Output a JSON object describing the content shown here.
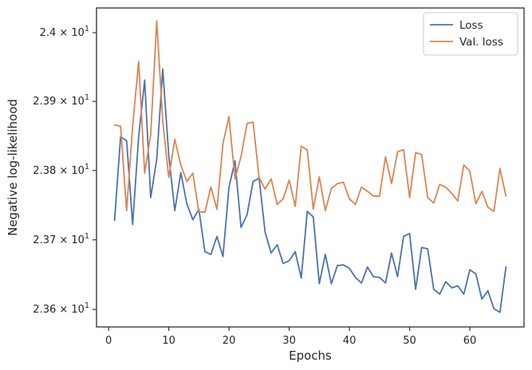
{
  "chart_data": {
    "type": "line",
    "xlabel": "Epochs",
    "ylabel": "Negative log-likelihood",
    "xlim": [
      -2,
      69
    ],
    "ylim": [
      23.575,
      24.036
    ],
    "y_scale": "log",
    "x_ticks": [
      0,
      10,
      20,
      30,
      40,
      50,
      60
    ],
    "x_tick_labels": [
      "0",
      "10",
      "20",
      "30",
      "40",
      "50",
      "60"
    ],
    "y_ticks": [
      23.6,
      23.7,
      23.8,
      23.9,
      24.0
    ],
    "y_tick_mantissas": [
      "2.36",
      "2.37",
      "2.38",
      "2.39",
      "2.4"
    ],
    "y_tick_base": "10",
    "y_tick_exponent": "1",
    "grid": false,
    "legend_position": "top-right",
    "x": [
      1,
      2,
      3,
      4,
      5,
      6,
      7,
      8,
      9,
      10,
      11,
      12,
      13,
      14,
      15,
      16,
      17,
      18,
      19,
      20,
      21,
      22,
      23,
      24,
      25,
      26,
      27,
      28,
      29,
      30,
      31,
      32,
      33,
      34,
      35,
      36,
      37,
      38,
      39,
      40,
      41,
      42,
      43,
      44,
      45,
      46,
      47,
      48,
      49,
      50,
      51,
      52,
      53,
      54,
      55,
      56,
      57,
      58,
      59,
      60,
      61,
      62,
      63,
      64,
      65,
      66
    ],
    "series": [
      {
        "name": "Loss",
        "color": "#4c72b0",
        "values": [
          23.728,
          23.849,
          23.843,
          23.722,
          23.849,
          23.931,
          23.761,
          23.816,
          23.947,
          23.822,
          23.742,
          23.797,
          23.752,
          23.729,
          23.744,
          23.683,
          23.679,
          23.705,
          23.676,
          23.776,
          23.814,
          23.718,
          23.736,
          23.784,
          23.789,
          23.711,
          23.681,
          23.693,
          23.666,
          23.67,
          23.683,
          23.645,
          23.741,
          23.733,
          23.637,
          23.679,
          23.637,
          23.663,
          23.664,
          23.659,
          23.646,
          23.638,
          23.661,
          23.647,
          23.646,
          23.638,
          23.681,
          23.647,
          23.705,
          23.709,
          23.629,
          23.689,
          23.687,
          23.629,
          23.622,
          23.64,
          23.631,
          23.634,
          23.622,
          23.657,
          23.651,
          23.615,
          23.627,
          23.601,
          23.596,
          23.661
        ]
      },
      {
        "name": "Val. loss",
        "color": "#dd8452",
        "values": [
          23.866,
          23.864,
          23.742,
          23.864,
          23.958,
          23.796,
          23.852,
          24.017,
          23.872,
          23.79,
          23.845,
          23.808,
          23.784,
          23.796,
          23.74,
          23.74,
          23.776,
          23.744,
          23.839,
          23.878,
          23.788,
          23.82,
          23.868,
          23.87,
          23.79,
          23.773,
          23.788,
          23.751,
          23.759,
          23.786,
          23.748,
          23.835,
          23.83,
          23.744,
          23.791,
          23.742,
          23.774,
          23.781,
          23.783,
          23.759,
          23.751,
          23.776,
          23.77,
          23.763,
          23.763,
          23.82,
          23.781,
          23.827,
          23.83,
          23.761,
          23.826,
          23.823,
          23.761,
          23.753,
          23.78,
          23.776,
          23.767,
          23.756,
          23.808,
          23.799,
          23.752,
          23.77,
          23.747,
          23.741,
          23.803,
          23.763
        ]
      }
    ]
  }
}
